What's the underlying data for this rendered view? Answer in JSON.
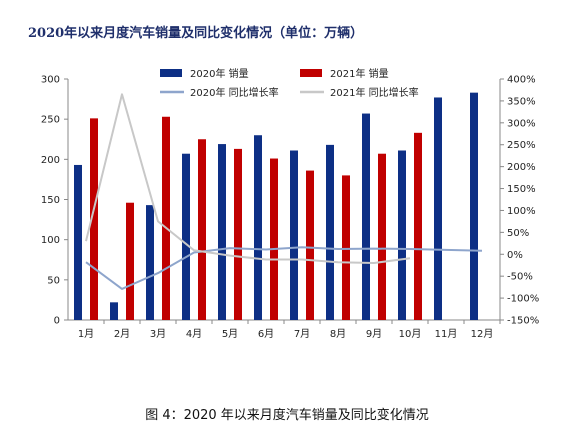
{
  "chart_data": {
    "type": "bar",
    "title": "2020年以来月度汽车销量及同比变化情况（单位：万辆）",
    "categories": [
      "1月",
      "2月",
      "3月",
      "4月",
      "5月",
      "6月",
      "7月",
      "8月",
      "9月",
      "10月",
      "11月",
      "12月"
    ],
    "series": [
      {
        "name": "2020年 销量",
        "type": "bar",
        "axis": "left",
        "color": "#0d2f85",
        "values": [
          193,
          22,
          143,
          207,
          219,
          230,
          211,
          218,
          257,
          211,
          277,
          283
        ]
      },
      {
        "name": "2021年 销量",
        "type": "bar",
        "axis": "left",
        "color": "#c00000",
        "values": [
          251,
          146,
          253,
          225,
          213,
          201,
          186,
          180,
          207,
          233,
          null,
          null
        ]
      },
      {
        "name": "2020年 同比增长率",
        "type": "line",
        "axis": "right",
        "color": "#8ea5cc",
        "values": [
          -18,
          -79,
          -43,
          4,
          14,
          11,
          16,
          12,
          13,
          12,
          10,
          8
        ]
      },
      {
        "name": "2021年 同比增长率",
        "type": "line",
        "axis": "right",
        "color": "#c8c8c8",
        "values": [
          30,
          365,
          75,
          9,
          -3,
          -12,
          -12,
          -18,
          -20,
          -9,
          null,
          null
        ]
      }
    ],
    "ylim_left": [
      0,
      300
    ],
    "yticks_left": [
      0,
      50,
      100,
      150,
      200,
      250,
      300
    ],
    "ylim_right": [
      -150,
      400
    ],
    "yticks_right": [
      "-150%",
      "-100%",
      "-50%",
      "0%",
      "50%",
      "100%",
      "150%",
      "200%",
      "250%",
      "300%",
      "350%",
      "400%"
    ],
    "grid": false,
    "legend": "top"
  },
  "caption": "图 4：2020 年以来月度汽车销量及同比变化情况"
}
